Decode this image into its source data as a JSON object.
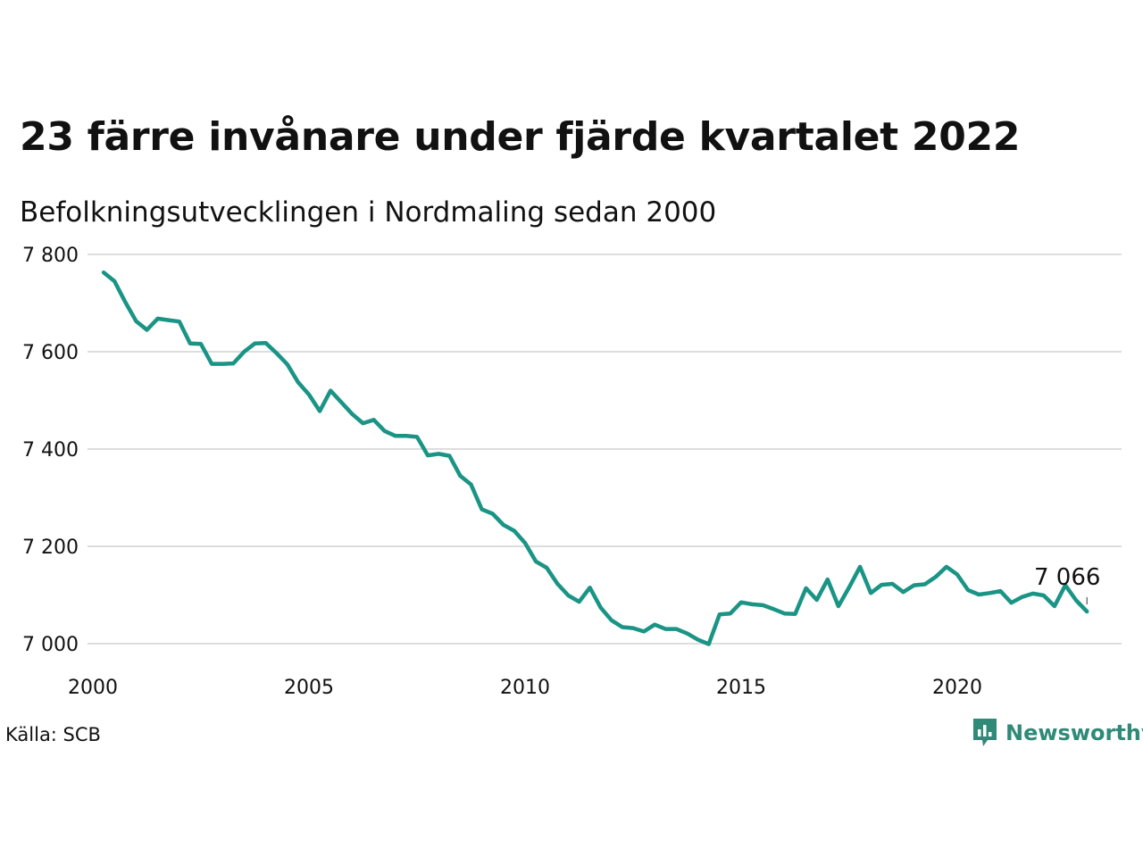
{
  "header": {
    "title": "23 färre invånare under fjärde kvartalet 2022",
    "subtitle": "Befolkningsutvecklingen i Nordmaling sedan 2000"
  },
  "footer": {
    "source": "Källa: SCB",
    "brand": "Newsworthy",
    "brand_icon": "bar-chart-speech-bubble-icon"
  },
  "colors": {
    "line": "#1a9485",
    "grid": "#dddddd",
    "brand": "#2f8a78"
  },
  "chart_data": {
    "type": "line",
    "title": "23 färre invånare under fjärde kvartalet 2022",
    "subtitle": "Befolkningsutvecklingen i Nordmaling sedan 2000",
    "xlabel": "",
    "ylabel": "",
    "ylim": [
      7000,
      7800
    ],
    "xlim": [
      2000,
      2023.6
    ],
    "yticks": [
      {
        "value": 7000,
        "label": "7 000"
      },
      {
        "value": 7200,
        "label": "7 200"
      },
      {
        "value": 7400,
        "label": "7 400"
      },
      {
        "value": 7600,
        "label": "7 600"
      },
      {
        "value": 7800,
        "label": "7 800"
      }
    ],
    "xticks": [
      {
        "value": 2000,
        "label": "2000"
      },
      {
        "value": 2005,
        "label": "2005"
      },
      {
        "value": 2010,
        "label": "2010"
      },
      {
        "value": 2015,
        "label": "2015"
      },
      {
        "value": 2020,
        "label": "2020"
      }
    ],
    "grid": true,
    "end_label": "7 066",
    "series": [
      {
        "x": [
          2000.25,
          2000.5,
          2000.75,
          2001.0,
          2001.25,
          2001.5,
          2001.75,
          2002.0,
          2002.25,
          2002.5,
          2002.75,
          2003.0,
          2003.25,
          2003.5,
          2003.75,
          2004.0,
          2004.25,
          2004.5,
          2004.75,
          2005.0,
          2005.25,
          2005.5,
          2005.75,
          2006.0,
          2006.25,
          2006.5,
          2006.75,
          2007.0,
          2007.25,
          2007.5,
          2007.75,
          2008.0,
          2008.25,
          2008.5,
          2008.75,
          2009.0,
          2009.25,
          2009.5,
          2009.75,
          2010.0,
          2010.25,
          2010.5,
          2010.75,
          2011.0,
          2011.25,
          2011.5,
          2011.75,
          2012.0,
          2012.25,
          2012.5,
          2012.75,
          2013.0,
          2013.25,
          2013.5,
          2013.75,
          2014.0,
          2014.25,
          2014.5,
          2014.75,
          2015.0,
          2015.25,
          2015.5,
          2015.75,
          2016.0,
          2016.25,
          2016.5,
          2016.75,
          2017.0,
          2017.25,
          2017.5,
          2017.75,
          2018.0,
          2018.25,
          2018.5,
          2018.75,
          2019.0,
          2019.25,
          2019.5,
          2019.75,
          2020.0,
          2020.25,
          2020.5,
          2020.75,
          2021.0,
          2021.25,
          2021.5,
          2021.75,
          2022.0,
          2022.25,
          2022.5,
          2022.75,
          2023.0
        ],
        "values": [
          7763,
          7745,
          7702,
          7663,
          7645,
          7668,
          7665,
          7662,
          7617,
          7616,
          7575,
          7575,
          7576,
          7600,
          7617,
          7618,
          7597,
          7574,
          7537,
          7512,
          7478,
          7520,
          7496,
          7472,
          7453,
          7460,
          7437,
          7427,
          7427,
          7425,
          7387,
          7390,
          7386,
          7345,
          7327,
          7276,
          7267,
          7244,
          7232,
          7207,
          7169,
          7156,
          7123,
          7099,
          7086,
          7115,
          7074,
          7048,
          7034,
          7032,
          7025,
          7039,
          7030,
          7030,
          7021,
          7008,
          6999,
          7060,
          7062,
          7085,
          7081,
          7079,
          7071,
          7062,
          7061,
          7114,
          7090,
          7132,
          7077,
          7116,
          7158,
          7104,
          7121,
          7123,
          7106,
          7120,
          7122,
          7137,
          7158,
          7142,
          7110,
          7101,
          7104,
          7108,
          7084,
          7096,
          7103,
          7099,
          7077,
          7120,
          7089,
          7066
        ]
      }
    ]
  }
}
